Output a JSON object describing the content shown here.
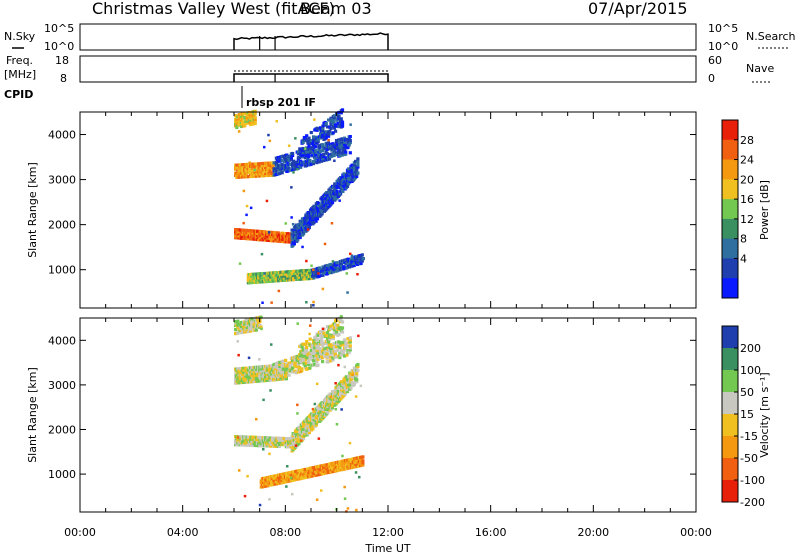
{
  "header": {
    "title": "Christmas Valley West (fitACF)",
    "beam": "Beam 03",
    "date": "07/Apr/2015"
  },
  "strip_panels": {
    "nsky": {
      "label": "N.Sky",
      "left_ticks": [
        "10^5",
        "10^0"
      ],
      "right_ticks": [
        "10^5",
        "10^0"
      ],
      "right_label": "N.Search"
    },
    "freq": {
      "label_line1": "Freq.",
      "label_line2": "[MHz]",
      "left_ticks": [
        "18",
        "8"
      ],
      "right_ticks": [
        "60",
        "0"
      ],
      "right_label": "Nave"
    },
    "cpid": {
      "label": "CPID",
      "program": "rbsp 201 IF"
    }
  },
  "colors": {
    "power": [
      "#0a1aff",
      "#1f3fae",
      "#2f6fa0",
      "#3a9060",
      "#72c850",
      "#f0c020",
      "#f59a10",
      "#f06010",
      "#e8200a"
    ],
    "velocity": [
      "#e8200a",
      "#f06010",
      "#f59a10",
      "#f0c020",
      "#c8c8c0",
      "#72c850",
      "#3a9060",
      "#1f3fae"
    ]
  },
  "chart_data": [
    {
      "type": "heatmap",
      "name": "power",
      "x_unit": "Time UT (hours)",
      "xlim": [
        0,
        24
      ],
      "ylim": [
        150,
        4500
      ],
      "ylabel": "Slant Range [km]",
      "yticks": [
        1000,
        2000,
        3000,
        4000
      ],
      "colorbar": {
        "label": "Power [dB]",
        "ticks": [
          "28",
          "24",
          "20",
          "16",
          "12",
          "8",
          "4"
        ]
      },
      "segments": [
        {
          "t_start": 6.0,
          "t_end": 8.2,
          "r_start": 1800,
          "r_end": 1700,
          "width": 90,
          "level": 7,
          "density": 0.9
        },
        {
          "t_start": 8.2,
          "t_end": 10.8,
          "r_start": 1700,
          "r_end": 3300,
          "width": 180,
          "level": 1,
          "density": 0.7
        },
        {
          "t_start": 6.0,
          "t_end": 7.5,
          "r_start": 3200,
          "r_end": 3250,
          "width": 150,
          "level": 6,
          "density": 0.8
        },
        {
          "t_start": 7.5,
          "t_end": 10.5,
          "r_start": 3300,
          "r_end": 3800,
          "width": 200,
          "level": 1,
          "density": 0.5
        },
        {
          "t_start": 6.5,
          "t_end": 9.0,
          "r_start": 800,
          "r_end": 900,
          "width": 90,
          "level": 4,
          "density": 0.85
        },
        {
          "t_start": 9.0,
          "t_end": 11.0,
          "r_start": 900,
          "r_end": 1250,
          "width": 90,
          "level": 1,
          "density": 0.6
        },
        {
          "t_start": 6.0,
          "t_end": 6.8,
          "r_start": 4300,
          "r_end": 4400,
          "width": 150,
          "level": 5,
          "density": 0.6
        },
        {
          "t_start": 8.5,
          "t_end": 10.2,
          "r_start": 3700,
          "r_end": 4400,
          "width": 200,
          "level": 1,
          "density": 0.35
        }
      ]
    },
    {
      "type": "heatmap",
      "name": "velocity",
      "x_unit": "Time UT (hours)",
      "xlim": [
        0,
        24
      ],
      "ylim": [
        150,
        4500
      ],
      "ylabel": "Slant Range [km]",
      "yticks": [
        1000,
        2000,
        3000,
        4000
      ],
      "xticks": [
        "00:00",
        "04:00",
        "08:00",
        "12:00",
        "16:00",
        "20:00",
        "00:00"
      ],
      "xlabel": "Time UT",
      "colorbar": {
        "label": "Velocity [m s⁻¹]",
        "ticks": [
          "200",
          "100",
          "50",
          "15",
          "-15",
          "-50",
          "-100",
          "-200"
        ]
      },
      "segments": [
        {
          "t_start": 6.0,
          "t_end": 8.2,
          "r_start": 1750,
          "r_end": 1700,
          "width": 90,
          "level": 4,
          "density": 0.9
        },
        {
          "t_start": 8.2,
          "t_end": 10.8,
          "r_start": 1700,
          "r_end": 3300,
          "width": 180,
          "level": 4,
          "density": 0.7
        },
        {
          "t_start": 6.0,
          "t_end": 8.0,
          "r_start": 3200,
          "r_end": 3300,
          "width": 160,
          "level": 4,
          "density": 0.8
        },
        {
          "t_start": 7.5,
          "t_end": 10.5,
          "r_start": 3300,
          "r_end": 3900,
          "width": 200,
          "level": 4,
          "density": 0.4
        },
        {
          "t_start": 7.0,
          "t_end": 11.0,
          "r_start": 800,
          "r_end": 1300,
          "width": 90,
          "level": 2,
          "density": 0.85
        },
        {
          "t_start": 6.0,
          "t_end": 7.0,
          "r_start": 4300,
          "r_end": 4400,
          "width": 150,
          "level": 4,
          "density": 0.6
        },
        {
          "t_start": 8.5,
          "t_end": 10.2,
          "r_start": 3700,
          "r_end": 4400,
          "width": 200,
          "level": 4,
          "density": 0.35
        }
      ]
    }
  ]
}
